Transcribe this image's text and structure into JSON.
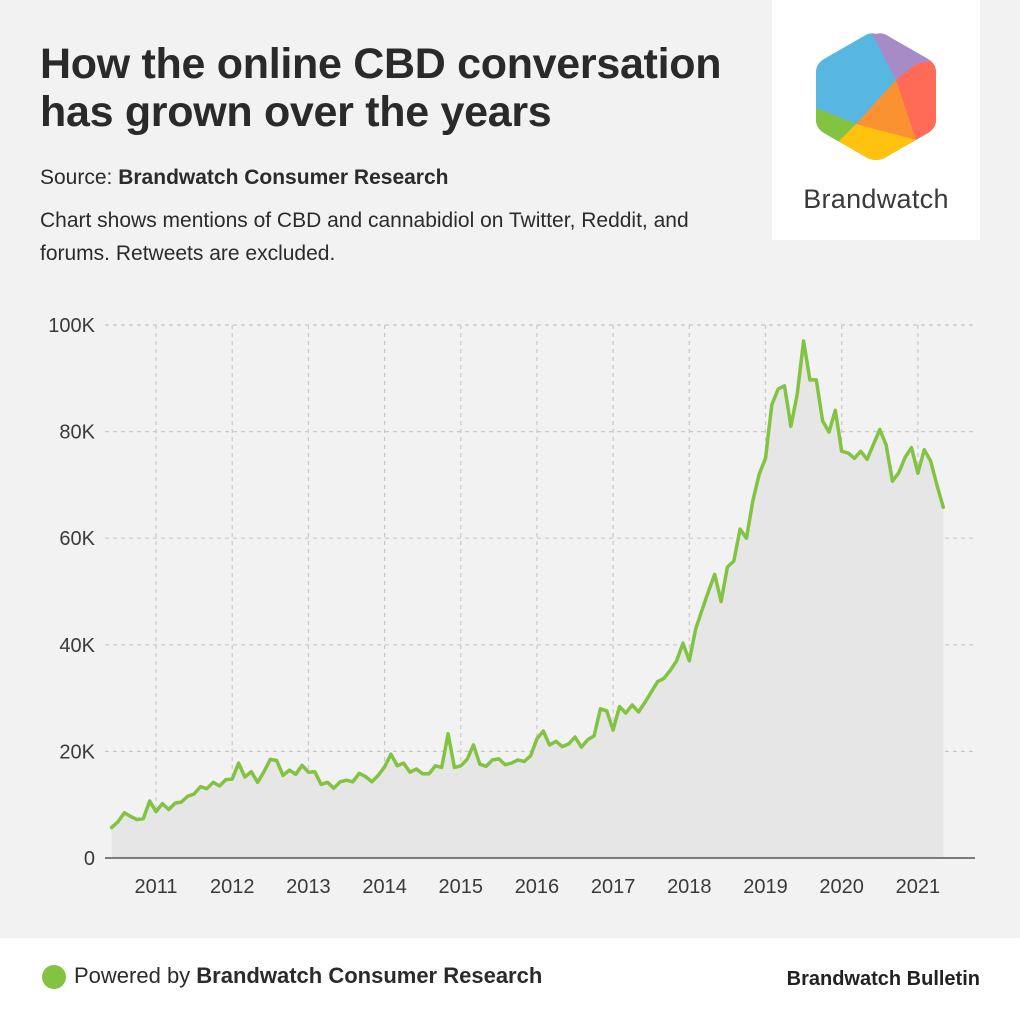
{
  "header": {
    "title": "How the online CBD conversation has grown over the years",
    "source_prefix": "Source: ",
    "source_name": "Brandwatch Consumer Research",
    "description": "Chart shows mentions of CBD and cannabidiol on Twitter, Reddit, and forums. Retweets are excluded."
  },
  "logo": {
    "wordmark": "Brandwatch",
    "colors": [
      "#58b7e0",
      "#a78bc6",
      "#ff6b57",
      "#fb9232",
      "#ffc20f",
      "#82c341"
    ]
  },
  "footer": {
    "powered_prefix": "Powered by ",
    "powered_name": "Brandwatch Consumer Research",
    "bulletin": "Brandwatch Bulletin"
  },
  "colors": {
    "line": "#82c341",
    "area": "#e6e6e6",
    "grid": "#c9c9c9",
    "background": "#f2f2f2"
  },
  "chart_data": {
    "type": "area",
    "title": "",
    "xlabel": "",
    "ylabel": "",
    "x_range": [
      2010.33,
      2021.75
    ],
    "ylim": [
      0,
      100000
    ],
    "yticks": [
      0,
      20000,
      40000,
      60000,
      80000,
      100000
    ],
    "ytick_labels": [
      "0",
      "20K",
      "40K",
      "60K",
      "80K",
      "100K"
    ],
    "xticks": [
      2011,
      2012,
      2013,
      2014,
      2015,
      2016,
      2017,
      2018,
      2019,
      2020,
      2021
    ],
    "xtick_labels": [
      "2011",
      "2012",
      "2013",
      "2014",
      "2015",
      "2016",
      "2017",
      "2018",
      "2019",
      "2020",
      "2021"
    ],
    "grid": true,
    "series": [
      {
        "x_start": "2010-06",
        "frequency": "monthly",
        "values": [
          5700,
          6800,
          8500,
          7800,
          7200,
          7400,
          10700,
          8700,
          10200,
          9100,
          10300,
          10500,
          11600,
          12000,
          13400,
          13000,
          14200,
          13500,
          14700,
          14800,
          17800,
          15200,
          16200,
          14200,
          16200,
          18500,
          18300,
          15500,
          16500,
          15700,
          17400,
          16100,
          16200,
          13800,
          14200,
          13100,
          14300,
          14600,
          14300,
          15900,
          15300,
          14300,
          15500,
          17100,
          19500,
          17300,
          17800,
          16100,
          16700,
          15800,
          15800,
          17300,
          17000,
          23300,
          17000,
          17300,
          18500,
          21200,
          17600,
          17200,
          18400,
          18600,
          17500,
          17800,
          18400,
          18100,
          19200,
          22400,
          23800,
          21200,
          21900,
          20900,
          21400,
          22700,
          20800,
          22200,
          22900,
          28000,
          27600,
          24000,
          28400,
          27200,
          28700,
          27400,
          29200,
          31100,
          33100,
          33700,
          35200,
          37000,
          40300,
          37000,
          43000,
          46500,
          50000,
          53200,
          48100,
          54600,
          55700,
          61700,
          60000,
          67000,
          72000,
          75000,
          85000,
          88000,
          88600,
          81000,
          87000,
          97000,
          89700,
          89700,
          82000,
          79900,
          84000,
          76300,
          76000,
          75000,
          76300,
          74800,
          77600,
          80400,
          77500,
          70700,
          72300,
          75200,
          77000,
          72200,
          76600,
          74500,
          70000,
          65800
        ]
      }
    ]
  }
}
